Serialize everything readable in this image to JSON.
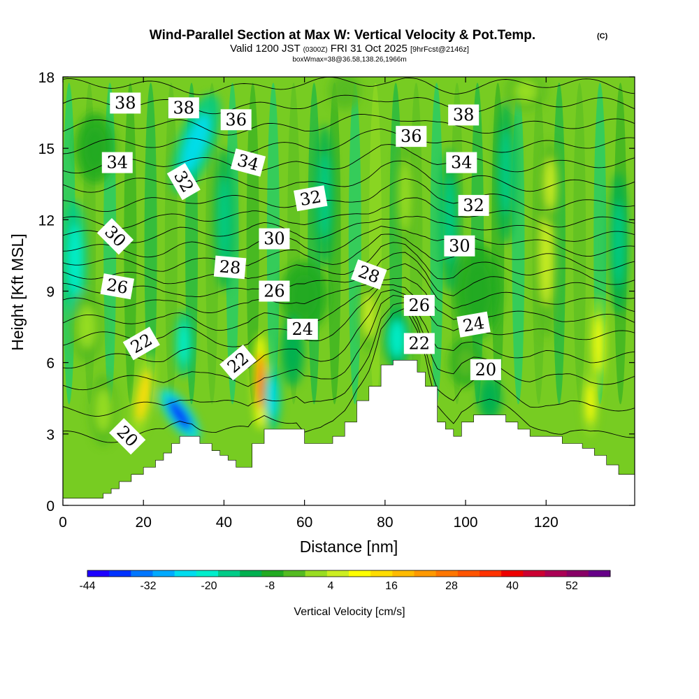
{
  "title": {
    "main": "Wind-Parallel Section at Max W: Vertical Velocity & Pot.Temp.",
    "copyright": "(C)",
    "valid_prefix": "Valid 1200 JST",
    "valid_utc": "(0300Z)",
    "valid_date": "FRI 31 Oct 2025",
    "forecast": "[9hrFcst@2146z]",
    "box": "boxWmax=38@36.58,138.26,1966m"
  },
  "chart_data": {
    "type": "heatmap",
    "xlabel": "Distance [nm]",
    "ylabel": "Height [Kft MSL]",
    "xlim": [
      0,
      142
    ],
    "ylim": [
      0,
      18
    ],
    "xticks": [
      0,
      20,
      40,
      60,
      80,
      100,
      120
    ],
    "yticks": [
      0,
      3,
      6,
      9,
      12,
      15,
      18
    ],
    "xtick_labels": [
      "0",
      "20",
      "40",
      "60",
      "80",
      "100",
      "120"
    ],
    "ytick_labels": [
      "0",
      "3",
      "6",
      "9",
      "12",
      "15",
      "18"
    ],
    "colorbar": {
      "label": "Vertical Velocity [cm/s]",
      "ticks": [
        "-44",
        "-32",
        "-20",
        "-8",
        "4",
        "16",
        "28",
        "40",
        "52"
      ],
      "colors": [
        "#1e00ff",
        "#0033ff",
        "#0077ff",
        "#00aaff",
        "#00ddee",
        "#00eecc",
        "#00cc88",
        "#00b050",
        "#22aa22",
        "#55bb22",
        "#99dd22",
        "#ccee22",
        "#ffff00",
        "#ffdd00",
        "#ffbb00",
        "#ff9900",
        "#ff7700",
        "#ff5500",
        "#ff3300",
        "#ee0000",
        "#cc0033",
        "#aa0055",
        "#880066",
        "#660088"
      ]
    },
    "terrain": [
      [
        0,
        0.3
      ],
      [
        5,
        0.3
      ],
      [
        10,
        0.5
      ],
      [
        12,
        0.7
      ],
      [
        14,
        1
      ],
      [
        17,
        1.3
      ],
      [
        20,
        1.6
      ],
      [
        23,
        1.9
      ],
      [
        25,
        2.2
      ],
      [
        27,
        2.6
      ],
      [
        29,
        2.9
      ],
      [
        32,
        2.9
      ],
      [
        34,
        2.6
      ],
      [
        37,
        2.3
      ],
      [
        39,
        2.1
      ],
      [
        41,
        1.9
      ],
      [
        43,
        1.6
      ],
      [
        46,
        1.6
      ],
      [
        47,
        2.6
      ],
      [
        50,
        3.2
      ],
      [
        55,
        3.2
      ],
      [
        58,
        3.2
      ],
      [
        60,
        2.6
      ],
      [
        64,
        2.6
      ],
      [
        67,
        2.9
      ],
      [
        70,
        3.5
      ],
      [
        73,
        4.4
      ],
      [
        76,
        5.0
      ],
      [
        79,
        5.9
      ],
      [
        82,
        6.1
      ],
      [
        85,
        6.1
      ],
      [
        88,
        5.6
      ],
      [
        90,
        5.0
      ],
      [
        93,
        3.5
      ],
      [
        95,
        3.2
      ],
      [
        97,
        2.9
      ],
      [
        99,
        3.5
      ],
      [
        102,
        3.8
      ],
      [
        106,
        3.8
      ],
      [
        110,
        3.5
      ],
      [
        113,
        3.2
      ],
      [
        116,
        2.9
      ],
      [
        120,
        2.9
      ],
      [
        124,
        2.6
      ],
      [
        126,
        2.6
      ],
      [
        129,
        2.4
      ],
      [
        132,
        2.1
      ],
      [
        135,
        1.7
      ],
      [
        138,
        1.3
      ],
      [
        142,
        1.3
      ]
    ],
    "cells": [
      {
        "x": 20,
        "y": 4.6,
        "rx": 2.5,
        "ry": 1.8,
        "w": 30,
        "rot": 10
      },
      {
        "x": 29,
        "y": 3.8,
        "rx": 3,
        "ry": 1.3,
        "w": -42,
        "rot": -35
      },
      {
        "x": 30,
        "y": 6.8,
        "rx": 2.2,
        "ry": 1.4,
        "w": -20,
        "rot": 0
      },
      {
        "x": 49,
        "y": 5.2,
        "rx": 1.8,
        "ry": 2.0,
        "w": 52,
        "rot": 0
      },
      {
        "x": 52,
        "y": 4.5,
        "rx": 2.2,
        "ry": 1.4,
        "w": -24,
        "rot": 0
      },
      {
        "x": 33,
        "y": 15.2,
        "rx": 4.5,
        "ry": 2.2,
        "w": -22,
        "rot": 20
      },
      {
        "x": 3,
        "y": 10.3,
        "rx": 3,
        "ry": 2.5,
        "w": -18,
        "rot": 0
      },
      {
        "x": 76,
        "y": 8.0,
        "rx": 2.5,
        "ry": 1.6,
        "w": 16,
        "rot": 0
      },
      {
        "x": 83,
        "y": 7.0,
        "rx": 3.5,
        "ry": 1.3,
        "w": -16,
        "rot": 0
      },
      {
        "x": 120,
        "y": 10.5,
        "rx": 3,
        "ry": 3.5,
        "w": 16,
        "rot": 0
      },
      {
        "x": 121,
        "y": 13.5,
        "rx": 2.5,
        "ry": 1.8,
        "w": 16,
        "rot": 0
      },
      {
        "x": 133,
        "y": 6.8,
        "rx": 2.0,
        "ry": 2.0,
        "w": 26,
        "rot": 0
      },
      {
        "x": 131,
        "y": 4.3,
        "rx": 1.8,
        "ry": 1.4,
        "w": 26,
        "rot": 0
      },
      {
        "x": 85,
        "y": 13,
        "rx": 2.5,
        "ry": 2.5,
        "w": 14,
        "rot": 0
      },
      {
        "x": 6,
        "y": 7.5,
        "rx": 4,
        "ry": 1.5,
        "w": 12,
        "rot": 0
      },
      {
        "x": 10,
        "y": 4.0,
        "rx": 3.5,
        "ry": 1.5,
        "w": 10,
        "rot": 0
      },
      {
        "x": 40,
        "y": 12,
        "rx": 2.5,
        "ry": 3,
        "w": -10,
        "rot": 0
      },
      {
        "x": 65,
        "y": 13,
        "rx": 2.5,
        "ry": 3,
        "w": -9,
        "rot": 0
      },
      {
        "x": 96,
        "y": 12,
        "rx": 2.5,
        "ry": 3,
        "w": -10,
        "rot": 0
      },
      {
        "x": 110,
        "y": 14,
        "rx": 2.5,
        "ry": 3,
        "w": -9,
        "rot": 0
      },
      {
        "x": 138,
        "y": 11,
        "rx": 2.5,
        "ry": 3,
        "w": -12,
        "rot": 0
      },
      {
        "x": 103,
        "y": 9,
        "rx": 6,
        "ry": 2,
        "w": 3,
        "rot": 0
      },
      {
        "x": 60,
        "y": 8.8,
        "rx": 6,
        "ry": 1.5,
        "w": 3,
        "rot": 0
      },
      {
        "x": 8,
        "y": 15,
        "rx": 5,
        "ry": 1.5,
        "w": 3,
        "rot": 0
      },
      {
        "x": 115,
        "y": 17.4,
        "rx": 5,
        "ry": 0.8,
        "w": 10,
        "rot": 0
      },
      {
        "x": 70,
        "y": 17.4,
        "rx": 4,
        "ry": 0.8,
        "w": 8,
        "rot": 0
      },
      {
        "x": 100,
        "y": 6.0,
        "rx": 4,
        "ry": 1.0,
        "w": 4,
        "rot": 0
      },
      {
        "x": 57,
        "y": 6.5,
        "rx": 3,
        "ry": 1.5,
        "w": -8,
        "rot": 0
      },
      {
        "x": 106,
        "y": 4.5,
        "rx": 3,
        "ry": 1,
        "w": -8,
        "rot": 0
      }
    ],
    "isentropes": [
      {
        "theta": 20,
        "base": 3.0
      },
      {
        "theta": 21,
        "base": 4.1
      },
      {
        "theta": 22,
        "base": 5.2
      },
      {
        "theta": 23,
        "base": 6.1
      },
      {
        "theta": 24,
        "base": 7.0
      },
      {
        "theta": 25,
        "base": 7.7
      },
      {
        "theta": 26,
        "base": 8.4
      },
      {
        "theta": 27,
        "base": 9.0
      },
      {
        "theta": 28,
        "base": 9.6
      },
      {
        "theta": 29,
        "base": 10.2
      },
      {
        "theta": 30,
        "base": 10.8
      },
      {
        "theta": 31,
        "base": 11.4
      },
      {
        "theta": 32,
        "base": 12.0
      },
      {
        "theta": 33,
        "base": 12.7
      },
      {
        "theta": 34,
        "base": 13.5
      },
      {
        "theta": 35,
        "base": 14.3
      },
      {
        "theta": 36,
        "base": 15.1
      },
      {
        "theta": 37,
        "base": 15.9
      },
      {
        "theta": 38,
        "base": 16.8
      },
      {
        "theta": 39,
        "base": 17.6
      }
    ],
    "contour_labels": [
      {
        "text": "38",
        "x": 15.5,
        "y": 16.9,
        "rot": 0
      },
      {
        "text": "38",
        "x": 30,
        "y": 16.7,
        "rot": 0
      },
      {
        "text": "36",
        "x": 43,
        "y": 16.2,
        "rot": 0
      },
      {
        "text": "36",
        "x": 86.5,
        "y": 15.5,
        "rot": 0
      },
      {
        "text": "38",
        "x": 99.5,
        "y": 16.4,
        "rot": 0
      },
      {
        "text": "34",
        "x": 13.5,
        "y": 14.4,
        "rot": 0
      },
      {
        "text": "34",
        "x": 46,
        "y": 14.4,
        "rot": 15
      },
      {
        "text": "34",
        "x": 99,
        "y": 14.4,
        "rot": 0
      },
      {
        "text": "32",
        "x": 30,
        "y": 13.6,
        "rot": 60
      },
      {
        "text": "32",
        "x": 61.5,
        "y": 12.9,
        "rot": -10
      },
      {
        "text": "32",
        "x": 102,
        "y": 12.6,
        "rot": 0
      },
      {
        "text": "30",
        "x": 13,
        "y": 11.3,
        "rot": 45
      },
      {
        "text": "30",
        "x": 52.5,
        "y": 11.2,
        "rot": 0
      },
      {
        "text": "30",
        "x": 98.5,
        "y": 10.9,
        "rot": 0
      },
      {
        "text": "28",
        "x": 41.5,
        "y": 10.0,
        "rot": 5
      },
      {
        "text": "28",
        "x": 76,
        "y": 9.7,
        "rot": 20
      },
      {
        "text": "26",
        "x": 13.5,
        "y": 9.2,
        "rot": 10
      },
      {
        "text": "26",
        "x": 52.5,
        "y": 9.0,
        "rot": 0
      },
      {
        "text": "26",
        "x": 88.5,
        "y": 8.4,
        "rot": 0
      },
      {
        "text": "24",
        "x": 59.5,
        "y": 7.4,
        "rot": 0
      },
      {
        "text": "24",
        "x": 102,
        "y": 7.6,
        "rot": -10
      },
      {
        "text": "22",
        "x": 19.5,
        "y": 6.8,
        "rot": -30
      },
      {
        "text": "22",
        "x": 43.5,
        "y": 6.0,
        "rot": -40
      },
      {
        "text": "22",
        "x": 88.5,
        "y": 6.8,
        "rot": 0
      },
      {
        "text": "20",
        "x": 105,
        "y": 5.7,
        "rot": 0
      },
      {
        "text": "20",
        "x": 16,
        "y": 2.9,
        "rot": 45
      }
    ]
  }
}
